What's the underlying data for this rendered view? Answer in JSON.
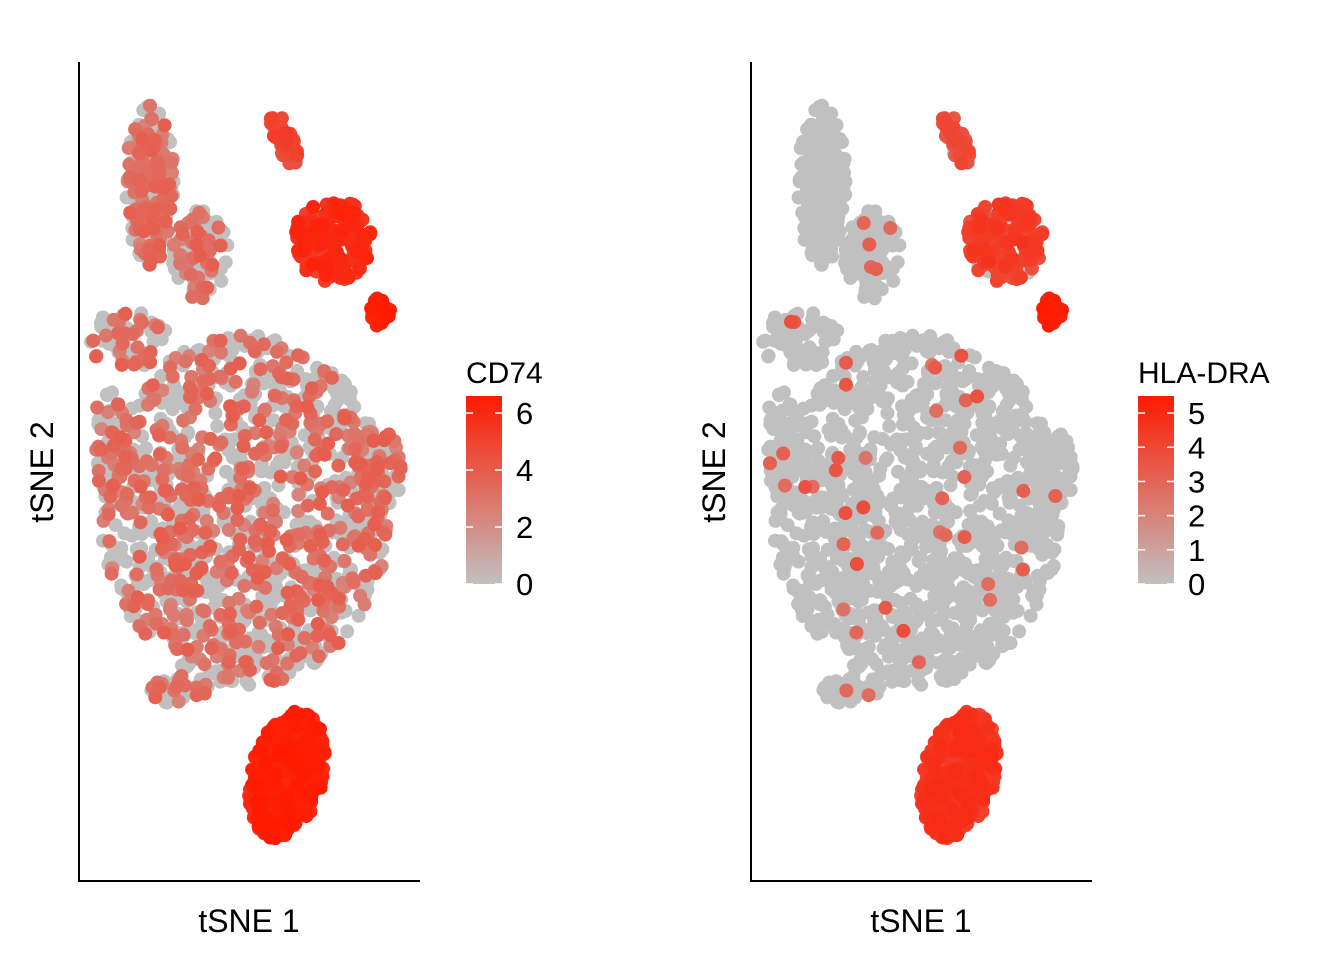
{
  "chart_data": [
    {
      "type": "scatter",
      "xlabel": "tSNE 1",
      "ylabel": "tSNE 2",
      "color_scale": {
        "title": "CD74",
        "ticks": [
          "0",
          "2",
          "4",
          "6"
        ],
        "domain": [
          0,
          6.6
        ],
        "low_color": "#c0c0c0",
        "high_color": "#ff1a00"
      },
      "clusters": [
        {
          "region": "large central cluster",
          "expression": "mixed low (gray) and moderate (salmon)"
        },
        {
          "region": "upper-left lobe",
          "expression": "mixed low and moderate"
        },
        {
          "region": "upper-middle lobe",
          "expression": "mixed low and moderate"
        },
        {
          "region": "top-right small streak",
          "expression": "moderate-high"
        },
        {
          "region": "right cluster",
          "expression": "high"
        },
        {
          "region": "right small tip",
          "expression": "very high"
        },
        {
          "region": "bottom cluster",
          "expression": "very high"
        }
      ]
    },
    {
      "type": "scatter",
      "xlabel": "tSNE 1",
      "ylabel": "tSNE 2",
      "color_scale": {
        "title": "HLA-DRA",
        "ticks": [
          "0",
          "1",
          "2",
          "3",
          "4",
          "5"
        ],
        "domain": [
          0,
          5.5
        ],
        "low_color": "#c0c0c0",
        "high_color": "#ff1a00"
      },
      "clusters": [
        {
          "region": "large central cluster",
          "expression": "mostly zero (gray), sparse moderate"
        },
        {
          "region": "upper-left lobe",
          "expression": "zero"
        },
        {
          "region": "upper-middle lobe",
          "expression": "mostly zero"
        },
        {
          "region": "top-right small streak",
          "expression": "moderate-high"
        },
        {
          "region": "right cluster",
          "expression": "moderate-high"
        },
        {
          "region": "right small tip",
          "expression": "very high"
        },
        {
          "region": "bottom cluster",
          "expression": "high"
        }
      ]
    }
  ]
}
